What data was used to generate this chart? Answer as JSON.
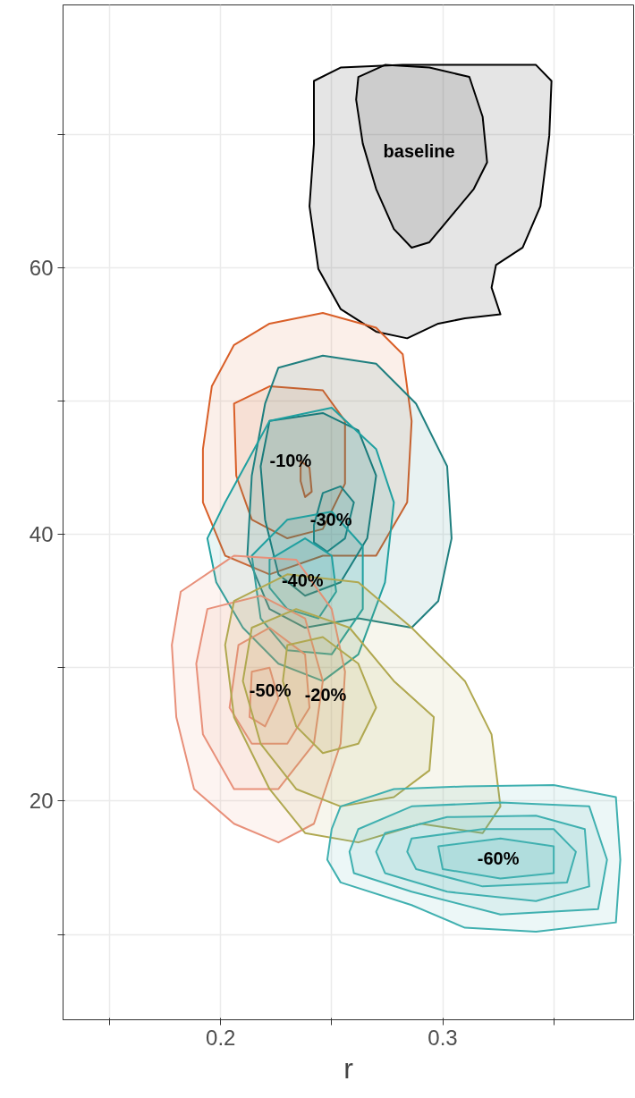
{
  "chart_data": {
    "type": "area",
    "xlabel": "r",
    "xlim": [
      0.129,
      0.386
    ],
    "ylim": [
      3.6,
      79.7
    ],
    "xticks": [
      {
        "value": 0.15,
        "label": null
      },
      0.2,
      {
        "value": 0.25,
        "label": null
      },
      0.3,
      {
        "value": 0.35,
        "label": null
      }
    ],
    "yticks": [
      {
        "value": 10,
        "label": null
      },
      20,
      {
        "value": 30,
        "label": null
      },
      40,
      {
        "value": 50,
        "label": null
      },
      60,
      {
        "value": 70,
        "label": null
      }
    ],
    "grid": true,
    "series": [
      {
        "color": "#000000",
        "x": [
          0.242,
          0.254,
          0.282,
          0.31,
          0.342,
          0.349,
          0.348,
          0.344,
          0.336,
          0.324,
          0.322,
          0.326,
          0.31,
          0.298,
          0.284,
          0.27,
          0.254,
          0.244,
          0.24,
          0.242
        ],
        "values": [
          74.0,
          75.0,
          75.2,
          75.2,
          75.2,
          74.0,
          69.9,
          64.6,
          61.5,
          60.2,
          58.5,
          56.5,
          56.2,
          55.8,
          54.7,
          55.2,
          56.9,
          59.9,
          64.6,
          69.3
        ]
      },
      {
        "name": "baseline",
        "color": "#000000",
        "x": [
          0.262,
          0.274,
          0.294,
          0.312,
          0.318,
          0.32,
          0.314,
          0.304,
          0.294,
          0.286,
          0.278,
          0.27,
          0.264,
          0.261
        ],
        "values": [
          74.3,
          75.2,
          75.0,
          74.3,
          71.3,
          67.9,
          65.9,
          63.9,
          61.9,
          61.5,
          62.9,
          65.9,
          69.3,
          72.6
        ]
      },
      {
        "color": "#d95f28",
        "x": [
          0.206,
          0.222,
          0.246,
          0.27,
          0.282,
          0.286,
          0.284,
          0.27,
          0.246,
          0.222,
          0.202,
          0.192,
          0.192,
          0.196
        ],
        "values": [
          54.2,
          55.8,
          56.6,
          55.5,
          53.5,
          48.5,
          42.4,
          38.4,
          38.4,
          37.0,
          38.4,
          42.4,
          46.4,
          51.1
        ]
      },
      {
        "name": "-10%",
        "color": "#d95f28",
        "x": [
          0.206,
          0.222,
          0.246,
          0.256,
          0.256,
          0.246,
          0.23,
          0.214,
          0.207
        ],
        "values": [
          49.8,
          51.1,
          50.8,
          48.5,
          43.8,
          40.4,
          39.7,
          41.1,
          44.4
        ]
      },
      {
        "color": "#d95f28",
        "x": [
          0.236,
          0.24,
          0.241,
          0.238,
          0.236
        ],
        "values": [
          45.5,
          45.0,
          43.2,
          42.8,
          44.0
        ]
      },
      {
        "color": "#1f7f7f",
        "x": [
          0.226,
          0.246,
          0.27,
          0.288,
          0.302,
          0.304,
          0.298,
          0.286,
          0.262,
          0.238,
          0.222,
          0.212,
          0.214,
          0.22
        ],
        "values": [
          52.5,
          53.4,
          52.8,
          49.8,
          45.1,
          39.7,
          35.0,
          33.0,
          33.7,
          33.0,
          34.4,
          38.4,
          44.4,
          49.8
        ]
      },
      {
        "color": "#1a7878",
        "x": [
          0.222,
          0.246,
          0.262,
          0.27,
          0.266,
          0.254,
          0.238,
          0.226,
          0.22,
          0.218
        ],
        "values": [
          48.5,
          49.1,
          47.8,
          44.4,
          39.7,
          36.4,
          35.4,
          37.0,
          41.1,
          45.1
        ]
      },
      {
        "name": "-30%",
        "color": "#1f7f7f",
        "x": [
          0.242,
          0.246,
          0.254,
          0.26,
          0.256,
          0.248,
          0.242
        ],
        "values": [
          40.7,
          43.1,
          43.6,
          42.4,
          39.7,
          38.7,
          39.4
        ]
      },
      {
        "color": "#20a0a0",
        "x": [
          0.202,
          0.222,
          0.25,
          0.27,
          0.278,
          0.274,
          0.262,
          0.246,
          0.226,
          0.21,
          0.198,
          0.194
        ],
        "values": [
          42.4,
          48.5,
          49.5,
          46.4,
          42.4,
          36.4,
          31.0,
          29.0,
          30.3,
          33.0,
          36.4,
          39.7
        ]
      },
      {
        "color": "#20a0a0",
        "x": [
          0.214,
          0.23,
          0.25,
          0.264,
          0.264,
          0.25,
          0.23,
          0.218
        ],
        "values": [
          38.4,
          41.1,
          41.7,
          39.1,
          34.4,
          31.0,
          31.3,
          33.7
        ]
      },
      {
        "name": "-40%",
        "color": "#20a0a0",
        "x": [
          0.222,
          0.238,
          0.25,
          0.252,
          0.244,
          0.23,
          0.222
        ],
        "values": [
          38.1,
          39.7,
          38.4,
          35.7,
          33.7,
          34.4,
          36.0
        ]
      },
      {
        "color": "#e8907a",
        "x": [
          0.182,
          0.206,
          0.234,
          0.25,
          0.256,
          0.254,
          0.242,
          0.226,
          0.206,
          0.188,
          0.18,
          0.178
        ],
        "values": [
          35.7,
          38.4,
          38.1,
          34.4,
          29.7,
          24.3,
          18.3,
          16.9,
          18.3,
          20.9,
          26.3,
          31.7
        ]
      },
      {
        "color": "#e8907a",
        "x": [
          0.194,
          0.218,
          0.238,
          0.246,
          0.242,
          0.226,
          0.206,
          0.192,
          0.189
        ],
        "values": [
          34.4,
          35.4,
          33.7,
          29.0,
          24.3,
          20.9,
          20.9,
          25.0,
          30.3
        ]
      },
      {
        "name": "-50%",
        "color": "#e8907a",
        "x": [
          0.208,
          0.222,
          0.238,
          0.24,
          0.23,
          0.214,
          0.204
        ],
        "values": [
          31.7,
          33.0,
          31.0,
          27.0,
          24.3,
          24.3,
          27.0
        ]
      },
      {
        "color": "#e8907a",
        "x": [
          0.214,
          0.222,
          0.226,
          0.22,
          0.213
        ],
        "values": [
          29.7,
          30.0,
          27.7,
          25.6,
          26.3
        ]
      },
      {
        "color": "#b0a850",
        "x": [
          0.206,
          0.23,
          0.262,
          0.286,
          0.31,
          0.322,
          0.326,
          0.318,
          0.29,
          0.262,
          0.238,
          0.222,
          0.206,
          0.202
        ],
        "values": [
          35.0,
          37.0,
          36.4,
          33.0,
          29.0,
          25.0,
          19.6,
          17.6,
          18.3,
          16.9,
          17.6,
          20.9,
          26.3,
          31.7
        ]
      },
      {
        "color": "#b0a850",
        "x": [
          0.214,
          0.234,
          0.258,
          0.278,
          0.296,
          0.294,
          0.278,
          0.254,
          0.234,
          0.218,
          0.21
        ],
        "values": [
          33.0,
          34.4,
          33.0,
          29.0,
          26.3,
          22.3,
          20.3,
          19.6,
          20.9,
          24.3,
          29.0
        ]
      },
      {
        "name": "-20%",
        "color": "#b0a850",
        "x": [
          0.23,
          0.246,
          0.262,
          0.27,
          0.262,
          0.246,
          0.234,
          0.228
        ],
        "values": [
          31.7,
          32.3,
          30.3,
          27.0,
          24.3,
          23.6,
          25.6,
          29.0
        ]
      },
      {
        "color": "#40b0b0",
        "x": [
          0.254,
          0.278,
          0.31,
          0.35,
          0.378,
          0.38,
          0.378,
          0.342,
          0.31,
          0.286,
          0.254,
          0.248,
          0.25
        ],
        "values": [
          19.6,
          20.9,
          21.1,
          21.2,
          20.3,
          15.6,
          10.9,
          10.2,
          10.5,
          12.2,
          13.9,
          15.6,
          17.9
        ]
      },
      {
        "color": "#40b0b0",
        "x": [
          0.262,
          0.286,
          0.326,
          0.366,
          0.374,
          0.37,
          0.326,
          0.286,
          0.26,
          0.258
        ],
        "values": [
          17.9,
          19.6,
          19.9,
          19.6,
          15.6,
          11.9,
          11.5,
          13.2,
          14.6,
          16.2
        ]
      },
      {
        "color": "#40b0b0",
        "x": [
          0.274,
          0.302,
          0.342,
          0.364,
          0.366,
          0.342,
          0.302,
          0.274,
          0.27
        ],
        "values": [
          17.6,
          18.8,
          18.9,
          17.9,
          13.6,
          12.5,
          13.2,
          14.6,
          16.2
        ]
      },
      {
        "color": "#40b0b0",
        "x": [
          0.286,
          0.318,
          0.35,
          0.36,
          0.356,
          0.318,
          0.288,
          0.284
        ],
        "values": [
          17.2,
          17.9,
          17.9,
          16.2,
          13.9,
          13.6,
          14.9,
          16.2
        ]
      },
      {
        "name": "-60%",
        "color": "#40b0b0",
        "x": [
          0.298,
          0.326,
          0.35,
          0.35,
          0.326,
          0.3
        ],
        "values": [
          16.6,
          17.2,
          16.6,
          14.6,
          14.2,
          14.9
        ]
      }
    ]
  }
}
